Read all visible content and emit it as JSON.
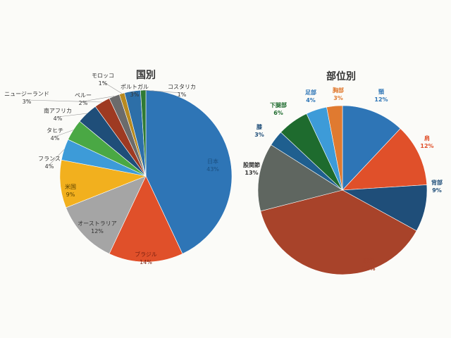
{
  "chart_data": [
    {
      "type": "pie",
      "title": "国別",
      "slices": [
        {
          "name": "日本",
          "value": 43,
          "pct": "43%",
          "color": "#2e75b6"
        },
        {
          "name": "ブラジル",
          "value": 14,
          "pct": "14%",
          "color": "#e0502a"
        },
        {
          "name": "オーストラリア",
          "value": 12,
          "pct": "12%",
          "color": "#a5a5a5"
        },
        {
          "name": "米国",
          "value": 9,
          "pct": "9%",
          "color": "#f2b01e"
        },
        {
          "name": "フランス",
          "value": 4,
          "pct": "4%",
          "color": "#3d9bd8"
        },
        {
          "name": "タヒチ",
          "value": 4,
          "pct": "4%",
          "color": "#4aa844"
        },
        {
          "name": "南アフリカ",
          "value": 4,
          "pct": "4%",
          "color": "#1f4e79"
        },
        {
          "name": "ニュージーランド",
          "value": 3,
          "pct": "3%",
          "color": "#9e3a22"
        },
        {
          "name": "ペルー",
          "value": 2,
          "pct": "2%",
          "color": "#6b6b6b"
        },
        {
          "name": "モロッコ",
          "value": 1,
          "pct": "1%",
          "color": "#b88a20"
        },
        {
          "name": "ポルトガル",
          "value": 3,
          "pct": "3%",
          "color": "#2d6fa8"
        },
        {
          "name": "コスタリカ",
          "value": 1,
          "pct": "1%",
          "color": "#2f7a33"
        }
      ]
    },
    {
      "type": "pie",
      "title": "部位別",
      "slices": [
        {
          "name": "頸",
          "value": 12,
          "pct": "12%",
          "color": "#2e75b6"
        },
        {
          "name": "肩",
          "value": 12,
          "pct": "12%",
          "color": "#e0502a"
        },
        {
          "name": "背部",
          "value": 9,
          "pct": "9%",
          "color": "#1f4e79"
        },
        {
          "name": "腰部",
          "value": 38,
          "pct": "38%",
          "color": "#a8432a"
        },
        {
          "name": "股関節",
          "value": 13,
          "pct": "13%",
          "color": "#5f6660"
        },
        {
          "name": "膝",
          "value": 3,
          "pct": "3%",
          "color": "#1f5f8f"
        },
        {
          "name": "下腿部",
          "value": 6,
          "pct": "6%",
          "color": "#1e6b2e"
        },
        {
          "name": "足部",
          "value": 4,
          "pct": "4%",
          "color": "#3d9bd8"
        },
        {
          "name": "胸部",
          "value": 3,
          "pct": "3%",
          "color": "#e07a30"
        }
      ]
    }
  ]
}
